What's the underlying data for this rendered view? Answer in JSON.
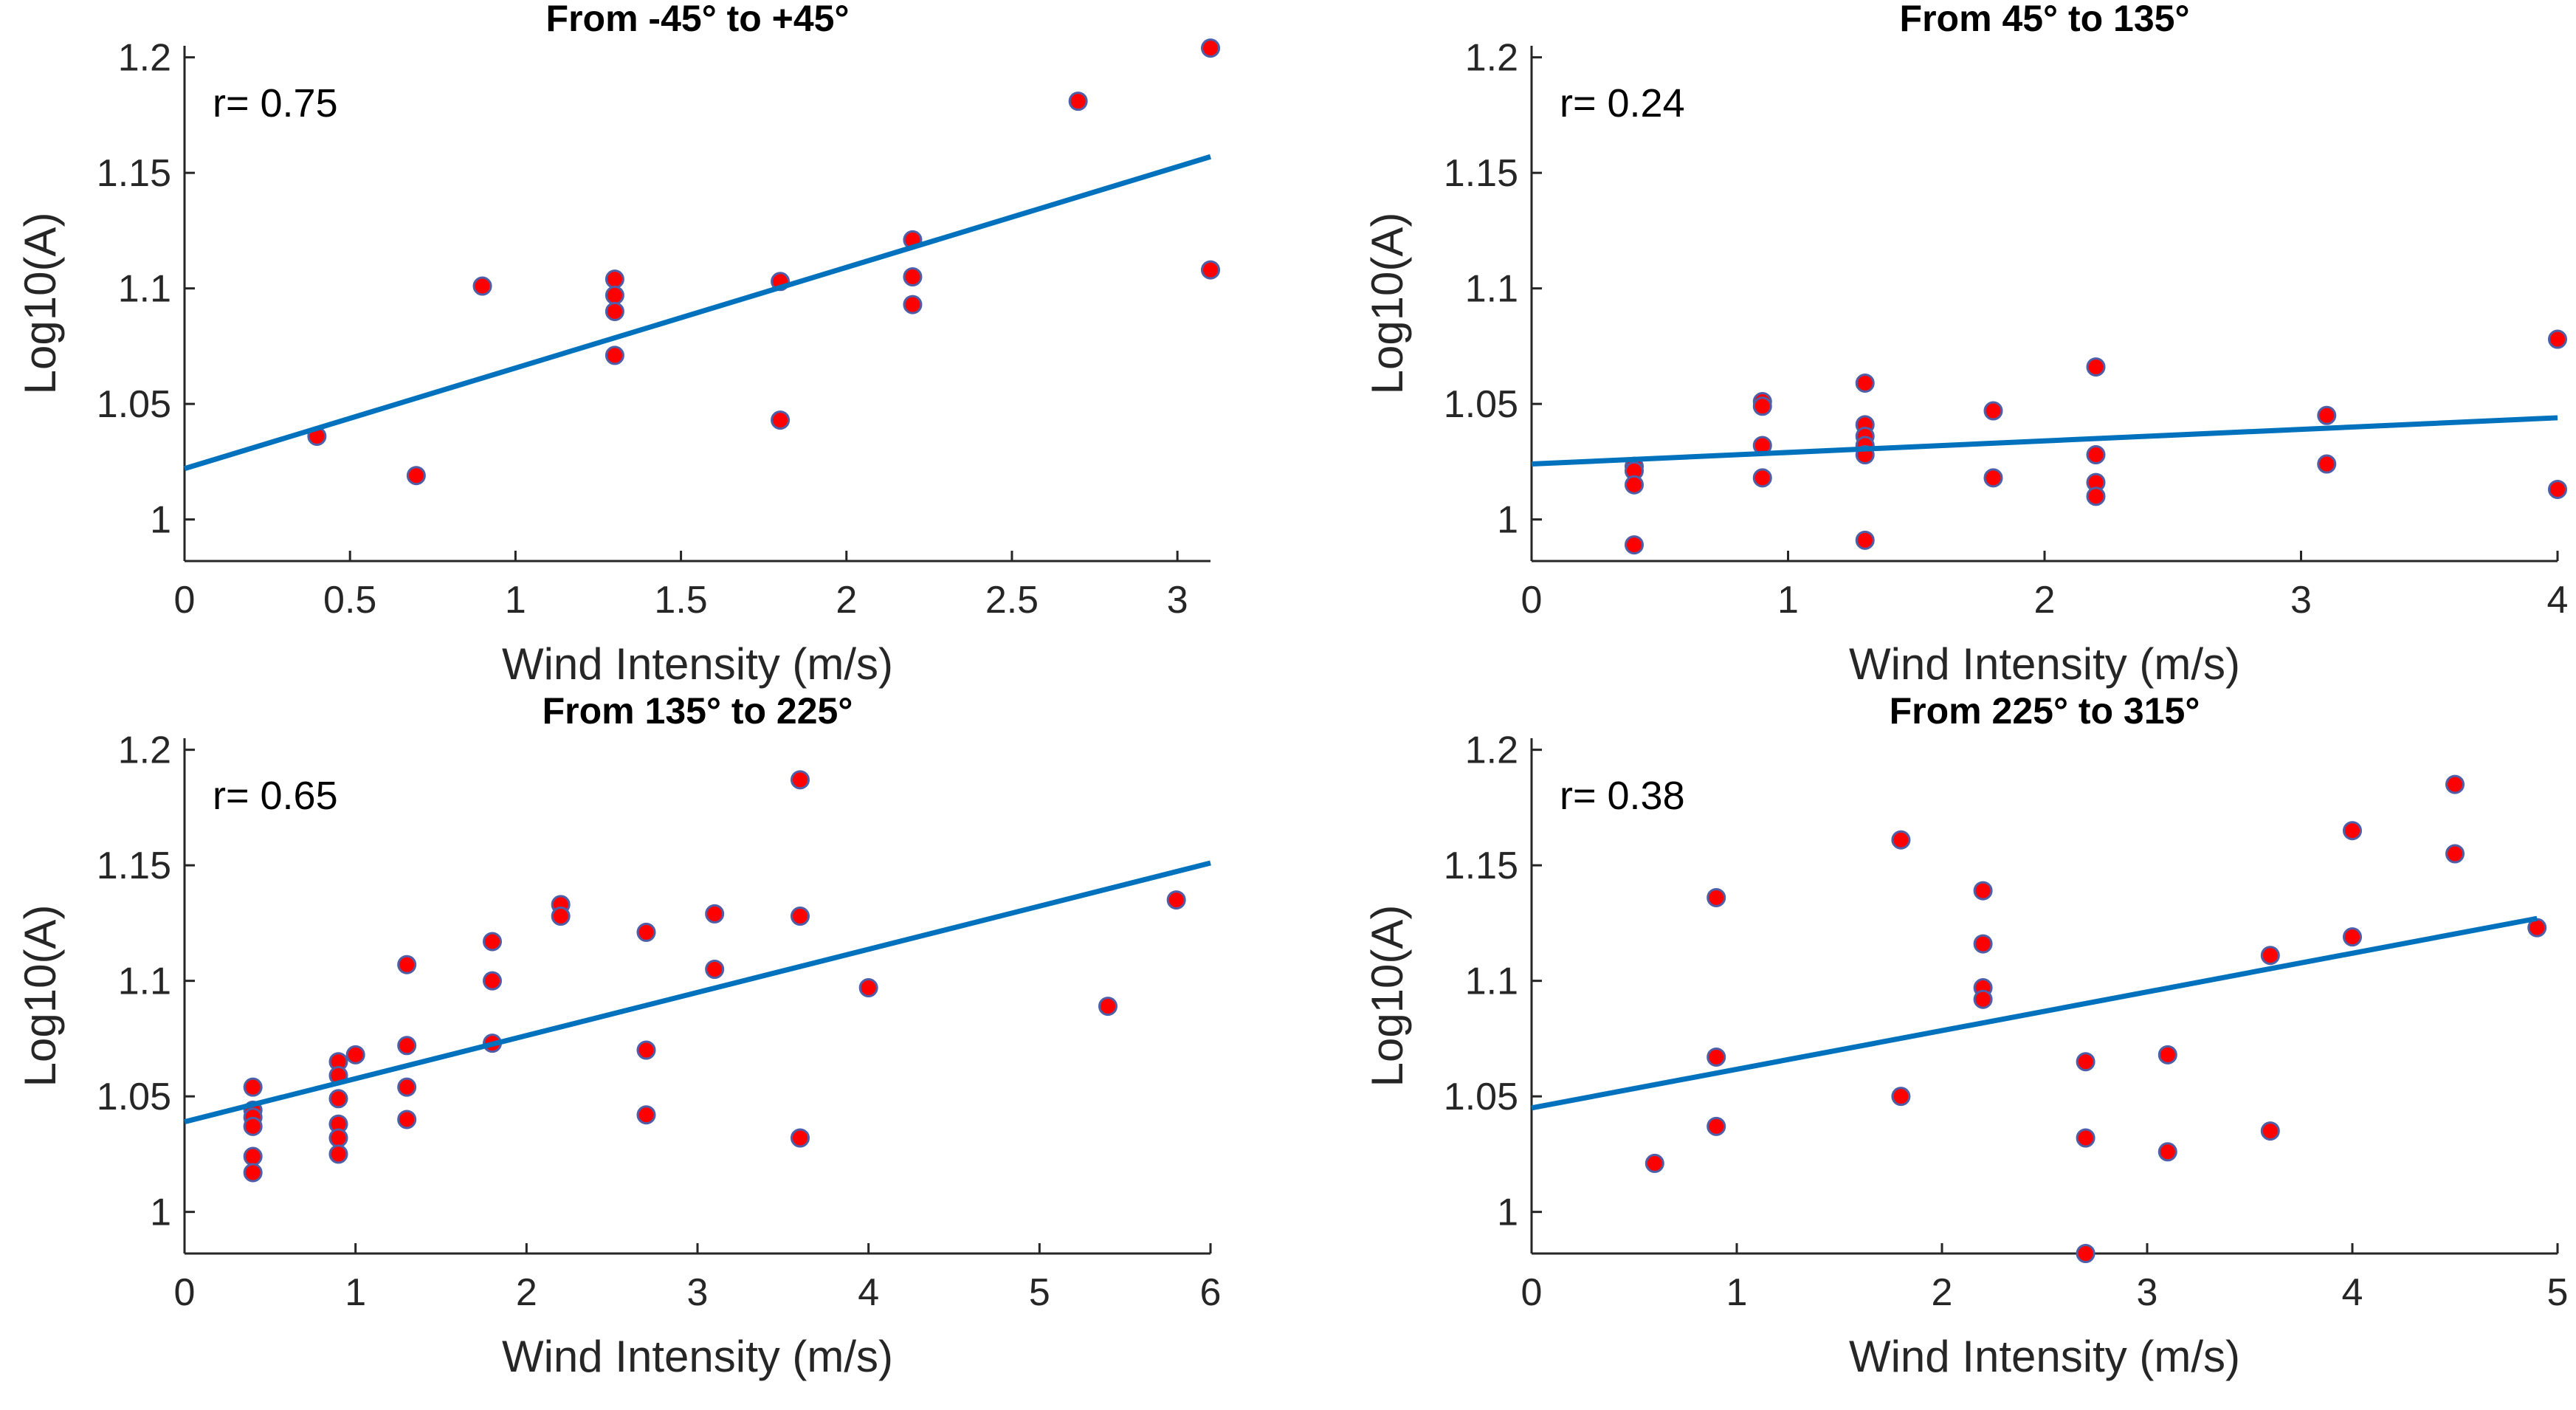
{
  "chart_data": [
    {
      "type": "scatter",
      "title": "From -45° to +45°",
      "xlabel": "Wind Intensity (m/s)",
      "ylabel": "Log10(A)",
      "r_label": "r= 0.75",
      "xlim": [
        0,
        3.1
      ],
      "ylim": [
        0.982,
        1.205
      ],
      "xticks": [
        0,
        0.5,
        1,
        1.5,
        2,
        2.5,
        3
      ],
      "xtick_labels": [
        "0",
        "0.5",
        "1",
        "1.5",
        "2",
        "2.5",
        "3"
      ],
      "yticks": [
        1,
        1.05,
        1.1,
        1.15,
        1.2
      ],
      "ytick_labels": [
        "1",
        "1.05",
        "1.1",
        "1.15",
        "1.2"
      ],
      "points": [
        [
          0.4,
          1.036
        ],
        [
          0.7,
          1.019
        ],
        [
          0.9,
          1.101
        ],
        [
          1.3,
          1.104
        ],
        [
          1.3,
          1.097
        ],
        [
          1.3,
          1.09
        ],
        [
          1.3,
          1.071
        ],
        [
          1.8,
          1.103
        ],
        [
          1.8,
          1.043
        ],
        [
          2.2,
          1.121
        ],
        [
          2.2,
          1.105
        ],
        [
          2.2,
          1.093
        ],
        [
          2.7,
          1.181
        ],
        [
          3.1,
          1.204
        ],
        [
          3.1,
          1.108
        ]
      ],
      "fit": {
        "x": [
          0,
          3.1
        ],
        "y": [
          1.022,
          1.157
        ]
      },
      "marker_color": "#ff0000",
      "marker_edge_color": "#4c5fa8",
      "line_color": "#0072bd"
    },
    {
      "type": "scatter",
      "title": "From 45° to 135°",
      "xlabel": "Wind Intensity (m/s)",
      "ylabel": "Log10(A)",
      "r_label": "r= 0.24",
      "xlim": [
        0,
        4
      ],
      "ylim": [
        0.982,
        1.205
      ],
      "xticks": [
        0,
        1,
        2,
        3,
        4
      ],
      "xtick_labels": [
        "0",
        "1",
        "2",
        "3",
        "4"
      ],
      "yticks": [
        1,
        1.05,
        1.1,
        1.15,
        1.2
      ],
      "ytick_labels": [
        "1",
        "1.05",
        "1.1",
        "1.15",
        "1.2"
      ],
      "points": [
        [
          0.4,
          1.023
        ],
        [
          0.4,
          1.021
        ],
        [
          0.4,
          1.015
        ],
        [
          0.4,
          0.989
        ],
        [
          0.9,
          1.051
        ],
        [
          0.9,
          1.049
        ],
        [
          0.9,
          1.032
        ],
        [
          0.9,
          1.018
        ],
        [
          1.3,
          1.059
        ],
        [
          1.3,
          1.041
        ],
        [
          1.3,
          1.036
        ],
        [
          1.3,
          1.032
        ],
        [
          1.3,
          1.028
        ],
        [
          1.3,
          0.991
        ],
        [
          1.8,
          1.047
        ],
        [
          1.8,
          1.018
        ],
        [
          2.2,
          1.066
        ],
        [
          2.2,
          1.028
        ],
        [
          2.2,
          1.016
        ],
        [
          2.2,
          1.01
        ],
        [
          3.1,
          1.045
        ],
        [
          3.1,
          1.024
        ],
        [
          4.0,
          1.078
        ],
        [
          4.0,
          1.013
        ]
      ],
      "fit": {
        "x": [
          0,
          4
        ],
        "y": [
          1.024,
          1.044
        ]
      },
      "marker_color": "#ff0000",
      "marker_edge_color": "#4c5fa8",
      "line_color": "#0072bd"
    },
    {
      "type": "scatter",
      "title": "From 135° to 225°",
      "xlabel": "Wind Intensity (m/s)",
      "ylabel": "Log10(A)",
      "r_label": "r= 0.65",
      "xlim": [
        0,
        6
      ],
      "ylim": [
        0.982,
        1.205
      ],
      "xticks": [
        0,
        1,
        2,
        3,
        4,
        5,
        6
      ],
      "xtick_labels": [
        "0",
        "1",
        "2",
        "3",
        "4",
        "5",
        "6"
      ],
      "yticks": [
        1,
        1.05,
        1.1,
        1.15,
        1.2
      ],
      "ytick_labels": [
        "1",
        "1.05",
        "1.1",
        "1.15",
        "1.2"
      ],
      "points": [
        [
          0.4,
          1.054
        ],
        [
          0.4,
          1.044
        ],
        [
          0.4,
          1.041
        ],
        [
          0.4,
          1.037
        ],
        [
          0.4,
          1.024
        ],
        [
          0.4,
          1.017
        ],
        [
          0.9,
          1.065
        ],
        [
          0.9,
          1.059
        ],
        [
          0.9,
          1.049
        ],
        [
          0.9,
          1.038
        ],
        [
          0.9,
          1.032
        ],
        [
          0.9,
          1.025
        ],
        [
          1.0,
          1.068
        ],
        [
          1.3,
          1.107
        ],
        [
          1.3,
          1.072
        ],
        [
          1.3,
          1.054
        ],
        [
          1.3,
          1.04
        ],
        [
          1.8,
          1.117
        ],
        [
          1.8,
          1.1
        ],
        [
          1.8,
          1.073
        ],
        [
          2.2,
          1.133
        ],
        [
          2.2,
          1.128
        ],
        [
          2.7,
          1.121
        ],
        [
          2.7,
          1.07
        ],
        [
          2.7,
          1.042
        ],
        [
          3.1,
          1.129
        ],
        [
          3.1,
          1.105
        ],
        [
          3.6,
          1.187
        ],
        [
          3.6,
          1.128
        ],
        [
          3.6,
          1.032
        ],
        [
          4.0,
          1.097
        ],
        [
          5.4,
          1.089
        ],
        [
          5.8,
          1.135
        ]
      ],
      "fit": {
        "x": [
          0,
          6
        ],
        "y": [
          1.039,
          1.151
        ]
      },
      "marker_color": "#ff0000",
      "marker_edge_color": "#4c5fa8",
      "line_color": "#0072bd"
    },
    {
      "type": "scatter",
      "title": "From 225° to 315°",
      "xlabel": "Wind Intensity (m/s)",
      "ylabel": "Log10(A)",
      "r_label": "r= 0.38",
      "xlim": [
        0,
        5
      ],
      "ylim": [
        0.982,
        1.205
      ],
      "xticks": [
        0,
        1,
        2,
        3,
        4,
        5
      ],
      "xtick_labels": [
        "0",
        "1",
        "2",
        "3",
        "4",
        "5"
      ],
      "yticks": [
        1,
        1.05,
        1.1,
        1.15,
        1.2
      ],
      "ytick_labels": [
        "1",
        "1.05",
        "1.1",
        "1.15",
        "1.2"
      ],
      "points": [
        [
          0.6,
          1.021
        ],
        [
          0.9,
          1.136
        ],
        [
          0.9,
          1.067
        ],
        [
          0.9,
          1.037
        ],
        [
          1.8,
          1.161
        ],
        [
          1.8,
          1.05
        ],
        [
          2.2,
          1.139
        ],
        [
          2.2,
          1.116
        ],
        [
          2.2,
          1.097
        ],
        [
          2.2,
          1.092
        ],
        [
          2.7,
          1.065
        ],
        [
          2.7,
          1.032
        ],
        [
          2.7,
          0.982
        ],
        [
          3.1,
          1.068
        ],
        [
          3.1,
          1.026
        ],
        [
          3.6,
          1.111
        ],
        [
          3.6,
          1.035
        ],
        [
          4.0,
          1.165
        ],
        [
          4.0,
          1.119
        ],
        [
          4.5,
          1.185
        ],
        [
          4.5,
          1.155
        ],
        [
          4.9,
          1.123
        ]
      ],
      "fit": {
        "x": [
          0,
          4.9
        ],
        "y": [
          1.045,
          1.127
        ]
      },
      "marker_color": "#ff0000",
      "marker_edge_color": "#4c5fa8",
      "line_color": "#0072bd"
    }
  ]
}
